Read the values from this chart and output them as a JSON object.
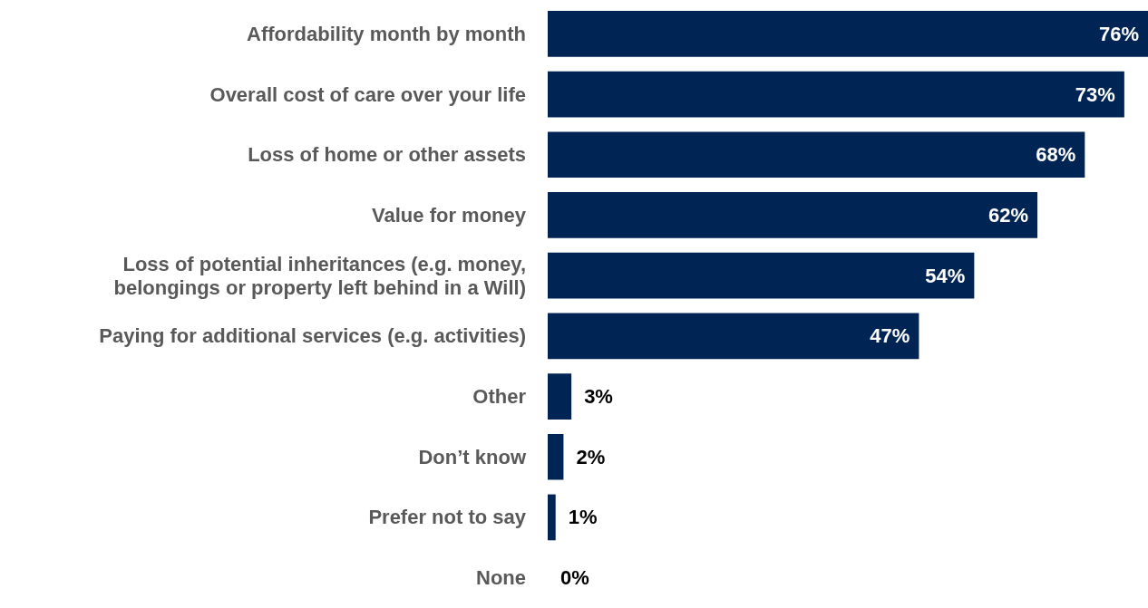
{
  "chart_data": {
    "type": "bar",
    "orientation": "horizontal",
    "categories": [
      "Affordability month by month",
      "Overall cost of care over your life",
      "Loss of home or other assets",
      "Value for money",
      "Loss of potential inheritances (e.g. money,\nbelongings or property left behind in a Will)",
      "Paying for additional services (e.g. activities)",
      "Other",
      "Don’t know",
      "Prefer not to say",
      "None"
    ],
    "values": [
      76,
      73,
      68,
      62,
      54,
      47,
      3,
      2,
      1,
      0
    ],
    "value_labels": [
      "76%",
      "73%",
      "68%",
      "62%",
      "54%",
      "47%",
      "3%",
      "2%",
      "1%",
      "0%"
    ],
    "color": "#002554"
  }
}
